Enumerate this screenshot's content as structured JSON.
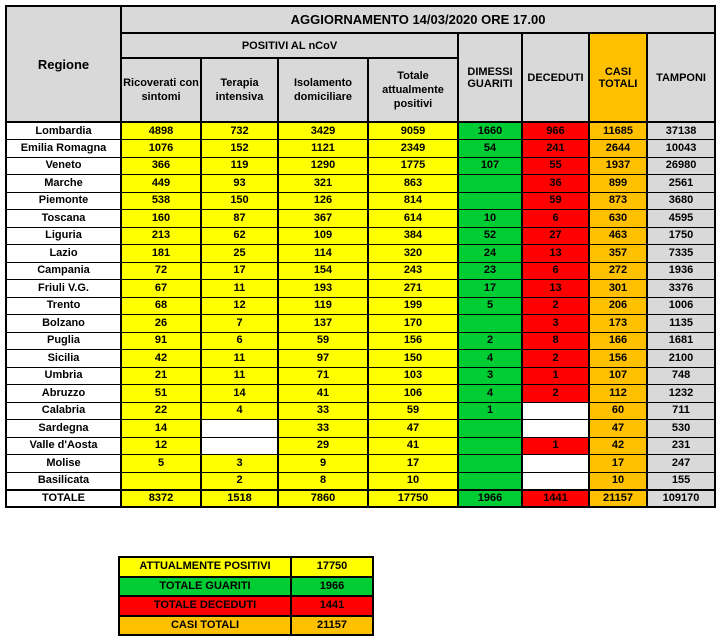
{
  "chart_data": {
    "type": "table",
    "title": "AGGIORNAMENTO 14/03/2020 ORE 17.00",
    "row_header": "Regione",
    "group_header": "POSITIVI AL nCoV",
    "columns": [
      "Ricoverati con sintomi",
      "Terapia intensiva",
      "Isolamento domiciliare",
      "Totale attualmente positivi",
      "DIMESSI GUARITI",
      "DECEDUTI",
      "CASI TOTALI",
      "TAMPONI"
    ],
    "column_colors": [
      "yellow",
      "yellow",
      "yellow",
      "yellow",
      "green",
      "red",
      "orange",
      "gray"
    ],
    "header_colors": [
      "gray",
      "gray",
      "gray",
      "gray",
      "gray",
      "gray",
      "orange",
      "gray"
    ],
    "rows": [
      {
        "regione": "Lombardia",
        "values": [
          "4898",
          "732",
          "3429",
          "9059",
          "1660",
          "966",
          "11685",
          "37138"
        ]
      },
      {
        "regione": "Emilia Romagna",
        "values": [
          "1076",
          "152",
          "1121",
          "2349",
          "54",
          "241",
          "2644",
          "10043"
        ]
      },
      {
        "regione": "Veneto",
        "values": [
          "366",
          "119",
          "1290",
          "1775",
          "107",
          "55",
          "1937",
          "26980"
        ]
      },
      {
        "regione": "Marche",
        "values": [
          "449",
          "93",
          "321",
          "863",
          "",
          "36",
          "899",
          "2561"
        ]
      },
      {
        "regione": "Piemonte",
        "values": [
          "538",
          "150",
          "126",
          "814",
          "",
          "59",
          "873",
          "3680"
        ]
      },
      {
        "regione": "Toscana",
        "values": [
          "160",
          "87",
          "367",
          "614",
          "10",
          "6",
          "630",
          "4595"
        ]
      },
      {
        "regione": "Liguria",
        "values": [
          "213",
          "62",
          "109",
          "384",
          "52",
          "27",
          "463",
          "1750"
        ]
      },
      {
        "regione": "Lazio",
        "values": [
          "181",
          "25",
          "114",
          "320",
          "24",
          "13",
          "357",
          "7335"
        ]
      },
      {
        "regione": "Campania",
        "values": [
          "72",
          "17",
          "154",
          "243",
          "23",
          "6",
          "272",
          "1936"
        ]
      },
      {
        "regione": "Friuli V.G.",
        "values": [
          "67",
          "11",
          "193",
          "271",
          "17",
          "13",
          "301",
          "3376"
        ]
      },
      {
        "regione": "Trento",
        "values": [
          "68",
          "12",
          "119",
          "199",
          "5",
          "2",
          "206",
          "1006"
        ]
      },
      {
        "regione": "Bolzano",
        "values": [
          "26",
          "7",
          "137",
          "170",
          "",
          "3",
          "173",
          "1135"
        ]
      },
      {
        "regione": "Puglia",
        "values": [
          "91",
          "6",
          "59",
          "156",
          "2",
          "8",
          "166",
          "1681"
        ]
      },
      {
        "regione": "Sicilia",
        "values": [
          "42",
          "11",
          "97",
          "150",
          "4",
          "2",
          "156",
          "2100"
        ]
      },
      {
        "regione": "Umbria",
        "values": [
          "21",
          "11",
          "71",
          "103",
          "3",
          "1",
          "107",
          "748"
        ]
      },
      {
        "regione": "Abruzzo",
        "values": [
          "51",
          "14",
          "41",
          "106",
          "4",
          "2",
          "112",
          "1232"
        ]
      },
      {
        "regione": "Calabria",
        "values": [
          "22",
          "4",
          "33",
          "59",
          "1",
          "",
          "60",
          "711"
        ]
      },
      {
        "regione": "Sardegna",
        "values": [
          "14",
          "",
          "33",
          "47",
          "",
          "",
          "47",
          "530"
        ]
      },
      {
        "regione": "Valle d'Aosta",
        "values": [
          "12",
          "",
          "29",
          "41",
          "",
          "1",
          "42",
          "231"
        ]
      },
      {
        "regione": "Molise",
        "values": [
          "5",
          "3",
          "9",
          "17",
          "",
          "",
          "17",
          "247"
        ]
      },
      {
        "regione": "Basilicata",
        "values": [
          "",
          "2",
          "8",
          "10",
          "",
          "",
          "10",
          "155"
        ]
      }
    ],
    "totale": {
      "label": "TOTALE",
      "values": [
        "8372",
        "1518",
        "7860",
        "17750",
        "1966",
        "1441",
        "21157",
        "109170"
      ]
    },
    "white_cells": [
      [
        "Sardegna",
        1
      ],
      [
        "Valle d'Aosta",
        1
      ],
      [
        "Calabria",
        5
      ],
      [
        "Sardegna",
        5
      ],
      [
        "Molise",
        5
      ],
      [
        "Basilicata",
        5
      ]
    ]
  },
  "summary": {
    "rows": [
      {
        "label": "ATTUALMENTE POSITIVI",
        "value": "17750",
        "color": "yellow"
      },
      {
        "label": "TOTALE GUARITI",
        "value": "1966",
        "color": "green"
      },
      {
        "label": "TOTALE DECEDUTI",
        "value": "1441",
        "color": "red"
      },
      {
        "label": "CASI TOTALI",
        "value": "21157",
        "color": "orange"
      }
    ]
  },
  "colors": {
    "yellow": "#FFFF00",
    "green": "#00CC33",
    "red": "#FF0000",
    "orange": "#FFC000",
    "gray": "#D9D9D9",
    "white": "#FFFFFF",
    "border": "#000000"
  }
}
